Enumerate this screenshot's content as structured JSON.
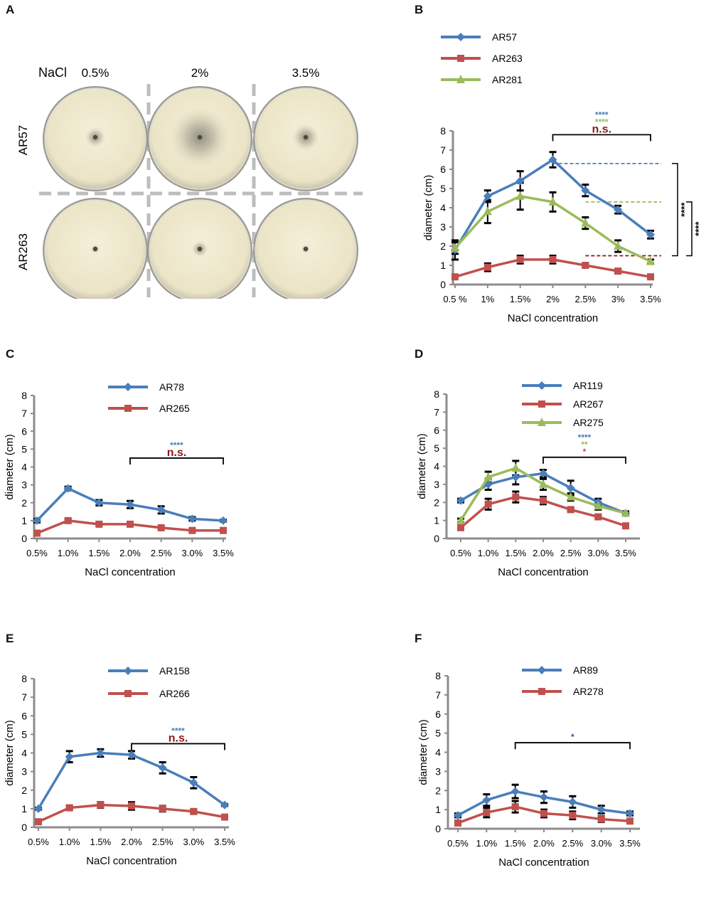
{
  "figure": {
    "panel_letters": [
      "A",
      "B",
      "C",
      "D",
      "E",
      "F"
    ],
    "panelA": {
      "nacl_label": "NaCl",
      "columns": [
        "0.5%",
        "2%",
        "3.5%"
      ],
      "rows": [
        "AR57",
        "AR263"
      ],
      "halo_diameters_cm": [
        [
          1.8,
          6.5,
          2.6
        ],
        [
          0.4,
          1.3,
          0.4
        ]
      ]
    }
  },
  "chart_data": [
    {
      "panel": "B",
      "type": "line",
      "categories": [
        "0.5 %",
        "1%",
        "1.5%",
        "2%",
        "2.5%",
        "3%",
        "3.5%"
      ],
      "xlabel": "NaCl concentration",
      "ylabel": "diameter (cm)",
      "ylim": [
        0,
        8
      ],
      "yticks": [
        "0",
        "1",
        "2",
        "3",
        "4",
        "5",
        "6",
        "7",
        "8"
      ],
      "legend": "top-left, stacked",
      "series": [
        {
          "name": "AR57",
          "color": "#4a7ebb",
          "marker": "diamond",
          "values": [
            1.8,
            4.6,
            5.4,
            6.5,
            4.9,
            3.9,
            2.6
          ],
          "errors": [
            0.5,
            0.3,
            0.5,
            0.4,
            0.3,
            0.2,
            0.2
          ]
        },
        {
          "name": "AR263",
          "color": "#c0504d",
          "marker": "square",
          "values": [
            0.4,
            0.9,
            1.3,
            1.3,
            1.0,
            0.7,
            0.4
          ],
          "errors": [
            0.1,
            0.2,
            0.2,
            0.2,
            0.1,
            0.1,
            0.1
          ]
        },
        {
          "name": "AR281",
          "color": "#9bbb59",
          "marker": "triangle",
          "values": [
            1.9,
            3.8,
            4.6,
            4.3,
            3.2,
            2.0,
            1.2
          ],
          "errors": [
            0.3,
            0.6,
            0.7,
            0.5,
            0.3,
            0.3,
            0.1
          ]
        }
      ],
      "bracket": {
        "from": 3,
        "to": 6,
        "y": 7.8,
        "labels": [
          {
            "text": "****",
            "color": "#4a7ebb"
          },
          {
            "text": "****",
            "color": "#9bbb59"
          },
          {
            "text": "n.s.",
            "color": "#8b1a1a"
          }
        ]
      },
      "ref_lines": [
        {
          "y": 6.3,
          "from": 3,
          "color": "#4a7ebb"
        },
        {
          "y": 4.3,
          "from": 4,
          "color": "#9bbb59"
        },
        {
          "y": 1.5,
          "from": 4,
          "color": "#8b1a1a"
        }
      ],
      "side_brackets": [
        {
          "y1": 6.3,
          "y2": 1.5,
          "label": "****"
        },
        {
          "y1": 4.3,
          "y2": 1.5,
          "label": "****"
        }
      ]
    },
    {
      "panel": "C",
      "type": "line",
      "categories": [
        "0.5%",
        "1.0%",
        "1.5%",
        "2.0%",
        "2.5%",
        "3.0%",
        "3.5%"
      ],
      "xlabel": "NaCl concentration",
      "ylabel": "diameter (cm)",
      "ylim": [
        0,
        8
      ],
      "yticks": [
        "0",
        "1",
        "2",
        "3",
        "4",
        "5",
        "6",
        "7",
        "8"
      ],
      "legend": "top-center",
      "series": [
        {
          "name": "AR78",
          "color": "#4a7ebb",
          "marker": "diamond",
          "values": [
            1.0,
            2.8,
            2.0,
            1.9,
            1.6,
            1.1,
            1.0
          ],
          "errors": [
            0.1,
            0.1,
            0.15,
            0.2,
            0.2,
            0.1,
            0.05
          ]
        },
        {
          "name": "AR265",
          "color": "#c0504d",
          "marker": "square",
          "values": [
            0.3,
            1.0,
            0.8,
            0.8,
            0.6,
            0.45,
            0.45
          ],
          "errors": [
            0.05,
            0.1,
            0.05,
            0.05,
            0.05,
            0.05,
            0.05
          ]
        }
      ],
      "bracket": {
        "from": 3,
        "to": 6,
        "y": 4.5,
        "labels": [
          {
            "text": "****",
            "color": "#4a7ebb"
          },
          {
            "text": "n.s.",
            "color": "#8b1a1a"
          }
        ]
      }
    },
    {
      "panel": "D",
      "type": "line",
      "categories": [
        "0.5%",
        "1.0%",
        "1.5%",
        "2.0%",
        "2.5%",
        "3.0%",
        "3.5%"
      ],
      "xlabel": "NaCl concentration",
      "ylabel": "diameter (cm)",
      "ylim": [
        0,
        8
      ],
      "yticks": [
        "0",
        "1",
        "2",
        "3",
        "4",
        "5",
        "6",
        "7",
        "8"
      ],
      "legend": "top-center",
      "series": [
        {
          "name": "AR119",
          "color": "#4a7ebb",
          "marker": "diamond",
          "values": [
            2.1,
            3.0,
            3.4,
            3.6,
            2.8,
            2.0,
            1.4
          ],
          "errors": [
            0.1,
            0.3,
            0.4,
            0.2,
            0.4,
            0.2,
            0.1
          ]
        },
        {
          "name": "AR267",
          "color": "#c0504d",
          "marker": "square",
          "values": [
            0.6,
            1.9,
            2.3,
            2.1,
            1.6,
            1.2,
            0.7
          ],
          "errors": [
            0.1,
            0.3,
            0.3,
            0.2,
            0.1,
            0.1,
            0.1
          ]
        },
        {
          "name": "AR275",
          "color": "#9bbb59",
          "marker": "triangle",
          "values": [
            1.0,
            3.4,
            3.9,
            3.0,
            2.3,
            1.8,
            1.4
          ],
          "errors": [
            0.1,
            0.3,
            0.4,
            0.3,
            0.2,
            0.2,
            0.1
          ]
        }
      ],
      "bracket": {
        "from": 3,
        "to": 6,
        "y": 4.5,
        "labels": [
          {
            "text": "****",
            "color": "#4a7ebb"
          },
          {
            "text": "**",
            "color": "#9bbb59"
          },
          {
            "text": "*",
            "color": "#c0504d"
          }
        ]
      }
    },
    {
      "panel": "E",
      "type": "line",
      "categories": [
        "0.5%",
        "1.0%",
        "1.5%",
        "2.0%",
        "2.5%",
        "3.0%",
        "3.5%"
      ],
      "xlabel": "NaCl concentration",
      "ylabel": "diameter (cm)",
      "ylim": [
        0,
        8
      ],
      "yticks": [
        "0",
        "1",
        "2",
        "3",
        "4",
        "5",
        "6",
        "7",
        "8"
      ],
      "legend": "top-center",
      "series": [
        {
          "name": "AR158",
          "color": "#4a7ebb",
          "marker": "diamond",
          "values": [
            1.0,
            3.8,
            4.0,
            3.9,
            3.2,
            2.4,
            1.2
          ],
          "errors": [
            0.05,
            0.3,
            0.2,
            0.2,
            0.3,
            0.3,
            0.05
          ]
        },
        {
          "name": "AR266",
          "color": "#c0504d",
          "marker": "square",
          "values": [
            0.3,
            1.05,
            1.2,
            1.15,
            1.0,
            0.85,
            0.55
          ],
          "errors": [
            0.05,
            0.1,
            0.15,
            0.2,
            0.15,
            0.1,
            0.05
          ]
        }
      ],
      "bracket": {
        "from": 3,
        "to": 6,
        "y": 4.5,
        "labels": [
          {
            "text": "****",
            "color": "#4a7ebb"
          },
          {
            "text": "n.s.",
            "color": "#8b1a1a"
          }
        ]
      }
    },
    {
      "panel": "F",
      "type": "line",
      "categories": [
        "0.5%",
        "1.0%",
        "1.5%",
        "2.0%",
        "2.5%",
        "3.0%",
        "3.5%"
      ],
      "xlabel": "NaCl concentration",
      "ylabel": "diameter (cm)",
      "ylim": [
        0,
        8
      ],
      "yticks": [
        "0",
        "1",
        "2",
        "3",
        "4",
        "5",
        "6",
        "7",
        "8"
      ],
      "legend": "top-center",
      "series": [
        {
          "name": "AR89",
          "color": "#4a7ebb",
          "marker": "diamond",
          "values": [
            0.7,
            1.5,
            1.95,
            1.65,
            1.4,
            1.0,
            0.8
          ],
          "errors": [
            0.1,
            0.3,
            0.35,
            0.3,
            0.3,
            0.2,
            0.1
          ]
        },
        {
          "name": "AR278",
          "color": "#c0504d",
          "marker": "square",
          "values": [
            0.3,
            0.85,
            1.15,
            0.8,
            0.7,
            0.5,
            0.4
          ],
          "errors": [
            0.1,
            0.25,
            0.3,
            0.2,
            0.2,
            0.15,
            0.1
          ]
        }
      ],
      "bracket": {
        "from": 2,
        "to": 6,
        "y": 4.5,
        "labels": [
          {
            "text": "*",
            "color": "#1f5fa8"
          }
        ]
      }
    }
  ]
}
